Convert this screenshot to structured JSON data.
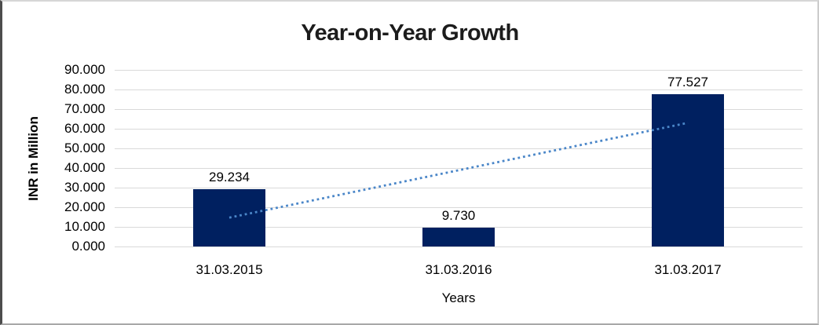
{
  "chart_data": {
    "type": "bar",
    "title": "Year-on-Year Growth",
    "categories": [
      "31.03.2015",
      "31.03.2016",
      "31.03.2017"
    ],
    "values": [
      29.234,
      9.73,
      77.527
    ],
    "value_labels": [
      "29.234",
      "9.730",
      "77.527"
    ],
    "xlabel": "Years",
    "ylabel": "INR in Million",
    "ylim": [
      0,
      90
    ],
    "ytick_values": [
      0,
      10,
      20,
      30,
      40,
      50,
      60,
      70,
      80,
      90
    ],
    "ytick_labels": [
      "0.000",
      "10.000",
      "20.000",
      "30.000",
      "40.000",
      "50.000",
      "60.000",
      "70.000",
      "80.000",
      "90.000"
    ],
    "grid": true,
    "legend": false,
    "bar_color": "#002060",
    "gridline_color": "#d9d9d9",
    "title_color": "#1c1c1c",
    "text_color": "#000000",
    "trendline": {
      "type": "linear",
      "line_style": "dotted",
      "color": "#4a86c8",
      "start_value": 14.7,
      "end_value": 63.0
    }
  }
}
